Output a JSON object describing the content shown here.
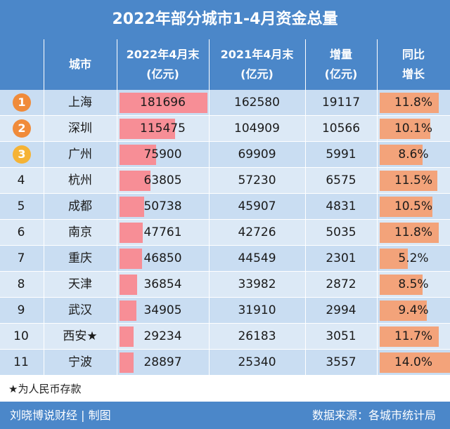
{
  "title": "2022年部分城市1-4月资金总量",
  "header": {
    "city": "城市",
    "col2022": "2022年4月末\n(亿元)",
    "col2021": "2021年4月末\n(亿元)",
    "increase": "增量\n(亿元)",
    "growth": "同比\n增长"
  },
  "colors": {
    "header_bg": "#4B87C9",
    "row_dark": "#C9DDF2",
    "row_light": "#DCE9F6",
    "bar_pink": "#F78E96",
    "bar_orange": "#F3A37A",
    "rank1": "#F08B3A",
    "rank2": "#F08B3A",
    "rank3": "#F5B335"
  },
  "chart_data": {
    "type": "table",
    "columns": [
      "城市",
      "2022年4月末(亿元)",
      "2021年4月末(亿元)",
      "增量(亿元)",
      "同比增长"
    ],
    "rows": [
      {
        "rank": "1",
        "city": "上海",
        "v2022": 181696,
        "v2021": 162580,
        "increase": 19117,
        "growth": "11.8%",
        "growth_value": 11.8
      },
      {
        "rank": "2",
        "city": "深圳",
        "v2022": 115475,
        "v2021": 104909,
        "increase": 10566,
        "growth": "10.1%",
        "growth_value": 10.1
      },
      {
        "rank": "3",
        "city": "广州",
        "v2022": 75900,
        "v2021": 69909,
        "increase": 5991,
        "growth": "8.6%",
        "growth_value": 8.6
      },
      {
        "rank": "4",
        "city": "杭州",
        "v2022": 63805,
        "v2021": 57230,
        "increase": 6575,
        "growth": "11.5%",
        "growth_value": 11.5
      },
      {
        "rank": "5",
        "city": "成都",
        "v2022": 50738,
        "v2021": 45907,
        "increase": 4831,
        "growth": "10.5%",
        "growth_value": 10.5
      },
      {
        "rank": "6",
        "city": "南京",
        "v2022": 47761,
        "v2021": 42726,
        "increase": 5035,
        "growth": "11.8%",
        "growth_value": 11.8
      },
      {
        "rank": "7",
        "city": "重庆",
        "v2022": 46850,
        "v2021": 44549,
        "increase": 2301,
        "growth": "5.2%",
        "growth_value": 5.2
      },
      {
        "rank": "8",
        "city": "天津",
        "v2022": 36854,
        "v2021": 33982,
        "increase": 2872,
        "growth": "8.5%",
        "growth_value": 8.5
      },
      {
        "rank": "9",
        "city": "武汉",
        "v2022": 34905,
        "v2021": 31910,
        "increase": 2994,
        "growth": "9.4%",
        "growth_value": 9.4
      },
      {
        "rank": "10",
        "city": "西安★",
        "v2022": 29234,
        "v2021": 26183,
        "increase": 3051,
        "growth": "11.7%",
        "growth_value": 11.7
      },
      {
        "rank": "11",
        "city": "宁波",
        "v2022": 28897,
        "v2021": 25340,
        "increase": 3557,
        "growth": "14.0%",
        "growth_value": 14.0
      }
    ]
  },
  "footnote": "★为人民币存款",
  "footer": {
    "left": "刘晓博说财经 | 制图",
    "right": "数据来源：各城市统计局"
  }
}
